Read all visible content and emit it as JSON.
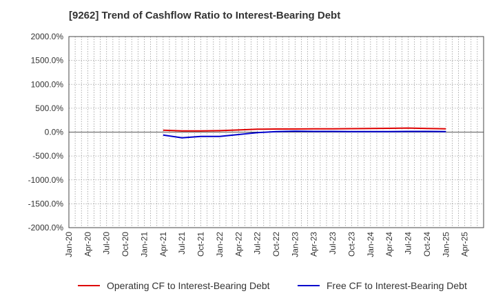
{
  "chart_data": {
    "type": "line",
    "title": "[9262]  Trend of Cashflow Ratio to Interest-Bearing Debt",
    "xlabel": "",
    "ylabel": "",
    "x_ticks": [
      "Jan-20",
      "Apr-20",
      "Jul-20",
      "Oct-20",
      "Jan-21",
      "Apr-21",
      "Jul-21",
      "Oct-21",
      "Jan-22",
      "Apr-22",
      "Jul-22",
      "Oct-22",
      "Jan-23",
      "Apr-23",
      "Jul-23",
      "Oct-23",
      "Jan-24",
      "Apr-24",
      "Jul-24",
      "Oct-24",
      "Jan-25",
      "Apr-25"
    ],
    "y_ticks": [
      "2000.0%",
      "1500.0%",
      "1000.0%",
      "500.0%",
      "0.0%",
      "-500.0%",
      "-1000.0%",
      "-1500.0%",
      "-2000.0%"
    ],
    "ylim": [
      -2000,
      2000
    ],
    "y_unit": "%",
    "grid": true,
    "legend_position": "bottom",
    "x": [
      "Apr-21",
      "Jul-21",
      "Oct-21",
      "Jan-22",
      "Apr-22",
      "Jul-22",
      "Oct-22",
      "Jan-23",
      "Apr-23",
      "Jul-23",
      "Oct-23",
      "Jan-24",
      "Apr-24",
      "Jul-24",
      "Oct-24",
      "Jan-25"
    ],
    "series": [
      {
        "name": "Operating CF to Interest-Bearing Debt",
        "color": "#dd0000",
        "values": [
          40,
          25,
          25,
          30,
          45,
          60,
          65,
          65,
          70,
          70,
          72,
          75,
          80,
          85,
          75,
          70
        ]
      },
      {
        "name": "Free CF to Interest-Bearing Debt",
        "color": "#0000cc",
        "values": [
          -60,
          -120,
          -90,
          -90,
          -50,
          -10,
          10,
          20,
          15,
          15,
          10,
          10,
          12,
          15,
          15,
          10
        ]
      }
    ]
  }
}
